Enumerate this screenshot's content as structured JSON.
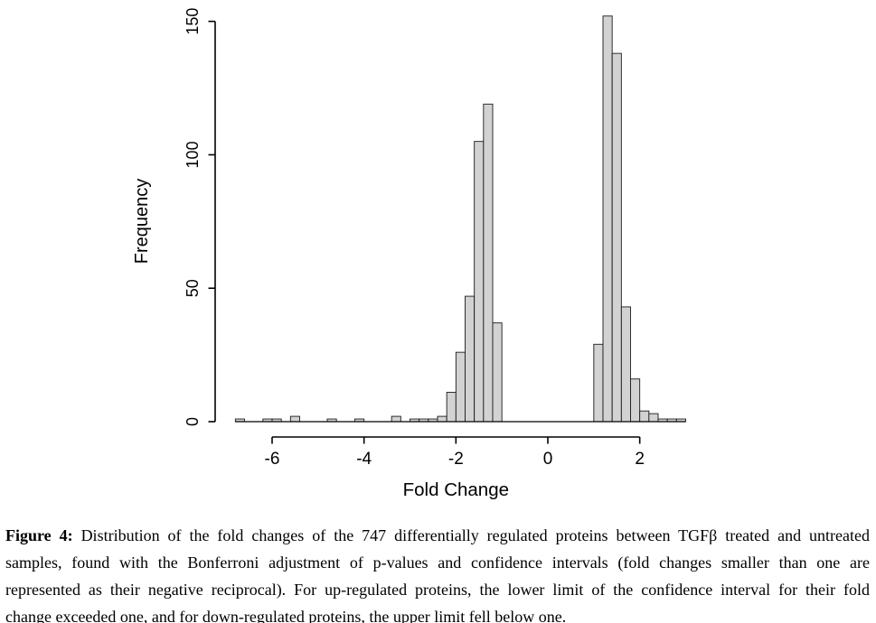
{
  "caption": {
    "label": "Figure 4:",
    "line1": "Distribution of the fold changes of the 747 differentially regulated proteins between TGFβ treated and untreated",
    "line2": "samples, found with the Bonferroni adjustment of p-values and confidence intervals (fold changes smaller than one are",
    "line3": "represented as their negative reciprocal). For up-regulated proteins, the lower limit of the confidence interval for their fold",
    "line4": "change exceeded one, and for down-regulated proteins, the upper limit fell below one."
  },
  "chart_data": {
    "type": "bar",
    "subtype": "histogram",
    "title": "",
    "xlabel": "Fold Change",
    "ylabel": "Frequency",
    "xlim": [
      -6.8,
      3.0
    ],
    "ylim": [
      0,
      150
    ],
    "x_ticks": [
      -6,
      -4,
      -2,
      0,
      2
    ],
    "y_ticks": [
      0,
      50,
      100,
      150
    ],
    "grid": false,
    "legend": null,
    "bin_start": -6.8,
    "bin_width": 0.2,
    "counts": [
      1,
      0,
      0,
      1,
      1,
      0,
      2,
      0,
      0,
      0,
      1,
      0,
      0,
      1,
      0,
      0,
      0,
      2,
      0,
      1,
      1,
      1,
      2,
      11,
      26,
      47,
      105,
      119,
      37,
      0,
      0,
      0,
      0,
      0,
      0,
      0,
      0,
      0,
      0,
      29,
      152,
      138,
      43,
      16,
      4,
      3,
      1,
      1,
      1
    ],
    "total_proteins": 747,
    "colors": {
      "bar_fill": "#d2d2d2",
      "bar_stroke": "#1a1a1a",
      "axis": "#000000",
      "text": "#000000",
      "background": "#ffffff"
    }
  }
}
